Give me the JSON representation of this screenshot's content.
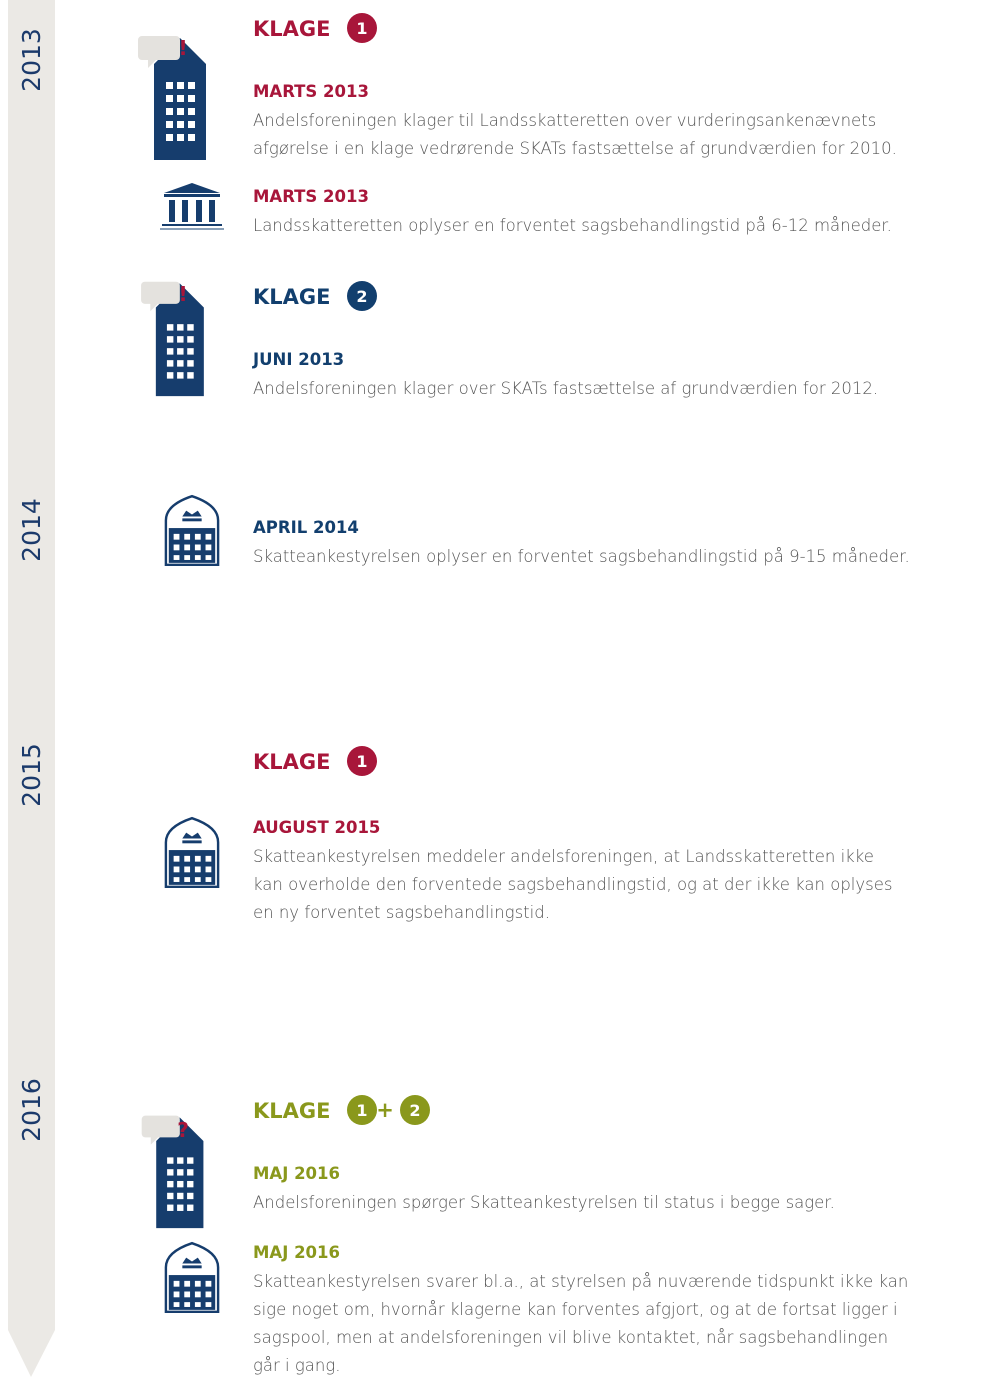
{
  "years": [
    "2013",
    "2014",
    "2015",
    "2016"
  ],
  "headings": [
    {
      "label": "KLAGE",
      "badges": [
        "1"
      ],
      "color": "#a8163a"
    },
    {
      "label": "KLAGE",
      "badges": [
        "2"
      ],
      "color": "#123f6e"
    },
    {
      "label": "KLAGE",
      "badges": [
        "1"
      ],
      "color": "#a8163a"
    },
    {
      "label": "KLAGE",
      "badges": [
        "1",
        "2"
      ],
      "joiner": "+",
      "color": "#8a981c"
    }
  ],
  "entries": [
    {
      "date": "MARTS 2013",
      "color": "#a8163a",
      "lines": [
        "Andelsforeningen klager til Landsskatteretten over vurderingsankenævnets",
        "afgørelse i en klage vedrørende SKATs fastsættelse af grundværdien for 2010."
      ]
    },
    {
      "date": "MARTS 2013",
      "color": "#a8163a",
      "lines": [
        "Landsskatteretten oplyser en forventet sagsbehandlingstid på 6-12 måneder."
      ]
    },
    {
      "date": "JUNI 2013",
      "color": "#123f6e",
      "lines": [
        "Andelsforeningen klager over SKATs fastsættelse af grundværdien for 2012."
      ]
    },
    {
      "date": "APRIL 2014",
      "color": "#123f6e",
      "lines": [
        "Skatteankestyrelsen oplyser en forventet sagsbehandlingstid på 9-15 måneder."
      ]
    },
    {
      "date": "AUGUST 2015",
      "color": "#a8163a",
      "lines": [
        "Skatteankestyrelsen meddeler andelsforeningen, at Landsskatteretten ikke",
        "kan overholde den forventede sagsbehandlingstid, og at der ikke kan oplyses",
        "en ny forventet sagsbehandlingstid."
      ]
    },
    {
      "date": "MAJ 2016",
      "color": "#8a981c",
      "lines": [
        "Andelsforeningen spørger Skatteankestyrelsen til status i begge sager."
      ]
    },
    {
      "date": "MAJ 2016",
      "color": "#8a981c",
      "lines": [
        "Skatteankestyrelsen svarer bl.a., at styrelsen på nuværende tidspunkt ikke kan",
        "sige noget om, hvornår klagerne kan forventes afgjort, og at de fortsat ligger i",
        "sagspool, men at andelsforeningen vil blive kontaktet, når sagsbehandlingen",
        "går i gang."
      ]
    }
  ]
}
